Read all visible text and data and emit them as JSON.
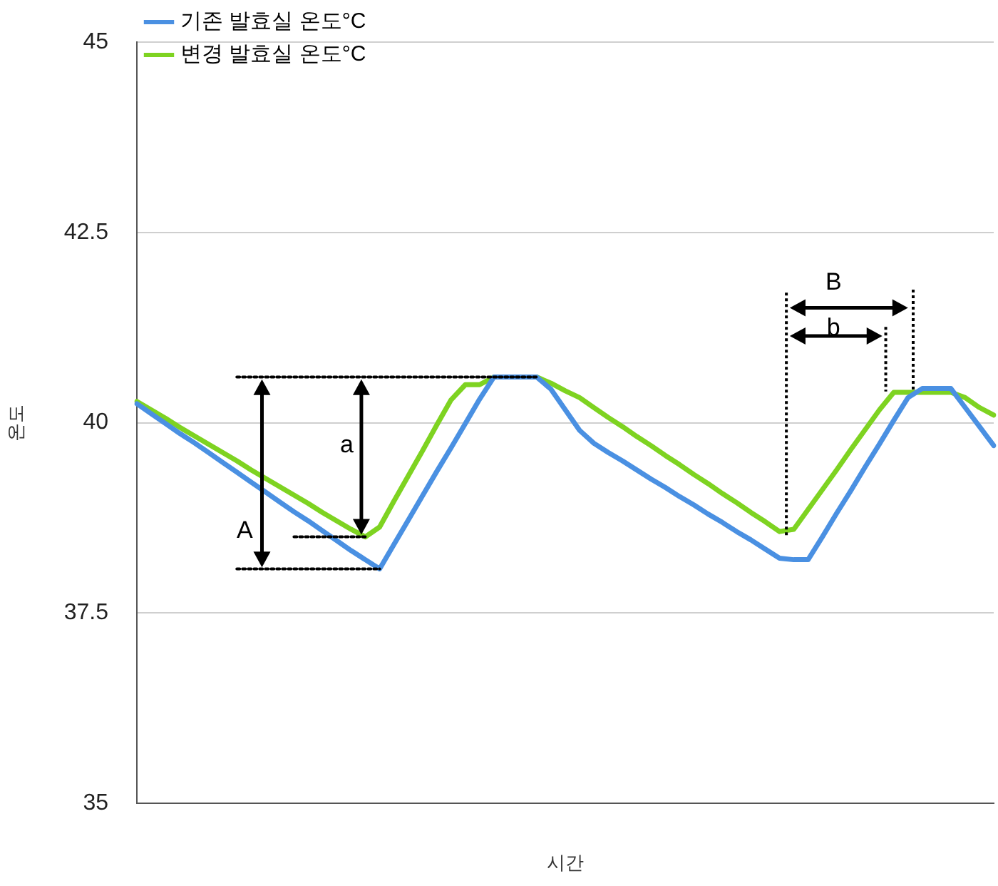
{
  "chart_data": {
    "type": "line",
    "xlabel": "시간",
    "ylabel": "온도",
    "categories": [
      null,
      null,
      null,
      null,
      null,
      null,
      null,
      null,
      null,
      null,
      null,
      null,
      null,
      null,
      null,
      null,
      null,
      null,
      null,
      null,
      null,
      null,
      null,
      null,
      null,
      null,
      null,
      null,
      null,
      null,
      null,
      null,
      null,
      null,
      null,
      null,
      null,
      null,
      null,
      null,
      null,
      null,
      null,
      null,
      null,
      null,
      null,
      null,
      null,
      null,
      null,
      null,
      null,
      null,
      null,
      null,
      null,
      null,
      null,
      null,
      null
    ],
    "series": [
      {
        "name": "기존 발효실 온도°C",
        "color": "#4a90e2",
        "values": [
          40.25,
          40.12,
          39.99,
          39.86,
          39.74,
          39.61,
          39.48,
          39.35,
          39.22,
          39.09,
          38.96,
          38.83,
          38.71,
          38.58,
          38.45,
          38.32,
          38.2,
          38.08,
          38.4,
          38.72,
          39.04,
          39.36,
          39.67,
          39.99,
          40.31,
          40.6,
          40.6,
          40.6,
          40.6,
          40.44,
          40.17,
          39.9,
          39.73,
          39.61,
          39.5,
          39.38,
          39.26,
          39.15,
          39.03,
          38.92,
          38.8,
          38.69,
          38.57,
          38.46,
          38.34,
          38.22,
          38.2,
          38.2,
          38.5,
          38.81,
          39.11,
          39.42,
          39.72,
          40.03,
          40.33,
          40.45,
          40.45,
          40.45,
          40.2,
          39.95,
          39.7
        ]
      },
      {
        "name": "변경 발효실 온도°C",
        "color": "#7ed321",
        "values": [
          40.28,
          40.17,
          40.06,
          39.94,
          39.83,
          39.72,
          39.61,
          39.5,
          39.38,
          39.27,
          39.16,
          39.05,
          38.94,
          38.82,
          38.71,
          38.6,
          38.5,
          38.63,
          38.97,
          39.3,
          39.63,
          39.97,
          40.3,
          40.5,
          40.5,
          40.6,
          40.6,
          40.6,
          40.6,
          40.52,
          40.42,
          40.33,
          40.2,
          40.07,
          39.95,
          39.82,
          39.7,
          39.57,
          39.45,
          39.32,
          39.2,
          39.07,
          38.95,
          38.82,
          38.7,
          38.57,
          38.6,
          38.86,
          39.12,
          39.38,
          39.65,
          39.91,
          40.17,
          40.4,
          40.4,
          40.4,
          40.4,
          40.4,
          40.33,
          40.2,
          40.1
        ]
      },
      {
        "color": "#000000",
        "line_style": "dotted",
        "values": [
          null,
          null,
          null,
          null,
          null,
          null,
          null,
          40.6,
          40.6,
          40.6,
          40.6,
          40.6,
          40.6,
          40.6,
          40.6,
          40.6,
          40.6,
          40.6,
          40.6,
          40.6,
          40.6,
          40.6,
          40.6,
          40.6,
          40.6,
          40.6,
          40.6,
          40.6,
          40.6,
          null,
          null,
          null,
          null,
          null,
          null,
          null,
          null,
          null,
          null,
          null,
          null,
          null,
          null,
          null,
          null,
          null,
          null,
          null,
          null,
          null,
          null,
          null,
          null,
          null,
          null,
          null,
          null,
          null,
          null,
          null,
          null
        ]
      },
      {
        "color": "#000000",
        "line_style": "dotted",
        "values": [
          null,
          null,
          null,
          null,
          null,
          null,
          null,
          null,
          null,
          null,
          null,
          38.5,
          38.5,
          38.5,
          38.5,
          38.5,
          38.5,
          null,
          null,
          null,
          null,
          null,
          null,
          null,
          null,
          null,
          null,
          null,
          null,
          null,
          null,
          null,
          null,
          null,
          null,
          null,
          null,
          null,
          null,
          null,
          null,
          null,
          null,
          null,
          null,
          null,
          null,
          null,
          null,
          null,
          null,
          null,
          null,
          null,
          null,
          null,
          null,
          null,
          null,
          null,
          null
        ]
      },
      {
        "color": "#000000",
        "line_style": "dotted",
        "values": [
          null,
          null,
          null,
          null,
          null,
          null,
          null,
          38.08,
          38.08,
          38.08,
          38.08,
          38.08,
          38.08,
          38.08,
          38.08,
          38.08,
          38.08,
          38.08,
          null,
          null,
          null,
          null,
          null,
          null,
          null,
          null,
          null,
          null,
          null,
          null,
          null,
          null,
          null,
          null,
          null,
          null,
          null,
          null,
          null,
          null,
          null,
          null,
          null,
          null,
          null,
          null,
          null,
          null,
          null,
          null,
          null,
          null,
          null,
          null,
          null,
          null,
          null,
          null,
          null,
          null,
          null
        ]
      }
    ],
    "ylim": [
      35,
      45
    ],
    "yticks": [
      35,
      37.5,
      40,
      42.5,
      45
    ],
    "grid": "y",
    "legend": "top left",
    "marker": "none",
    "line_style": "solid",
    "annotations": [
      "A",
      "a",
      "B",
      "b"
    ]
  }
}
